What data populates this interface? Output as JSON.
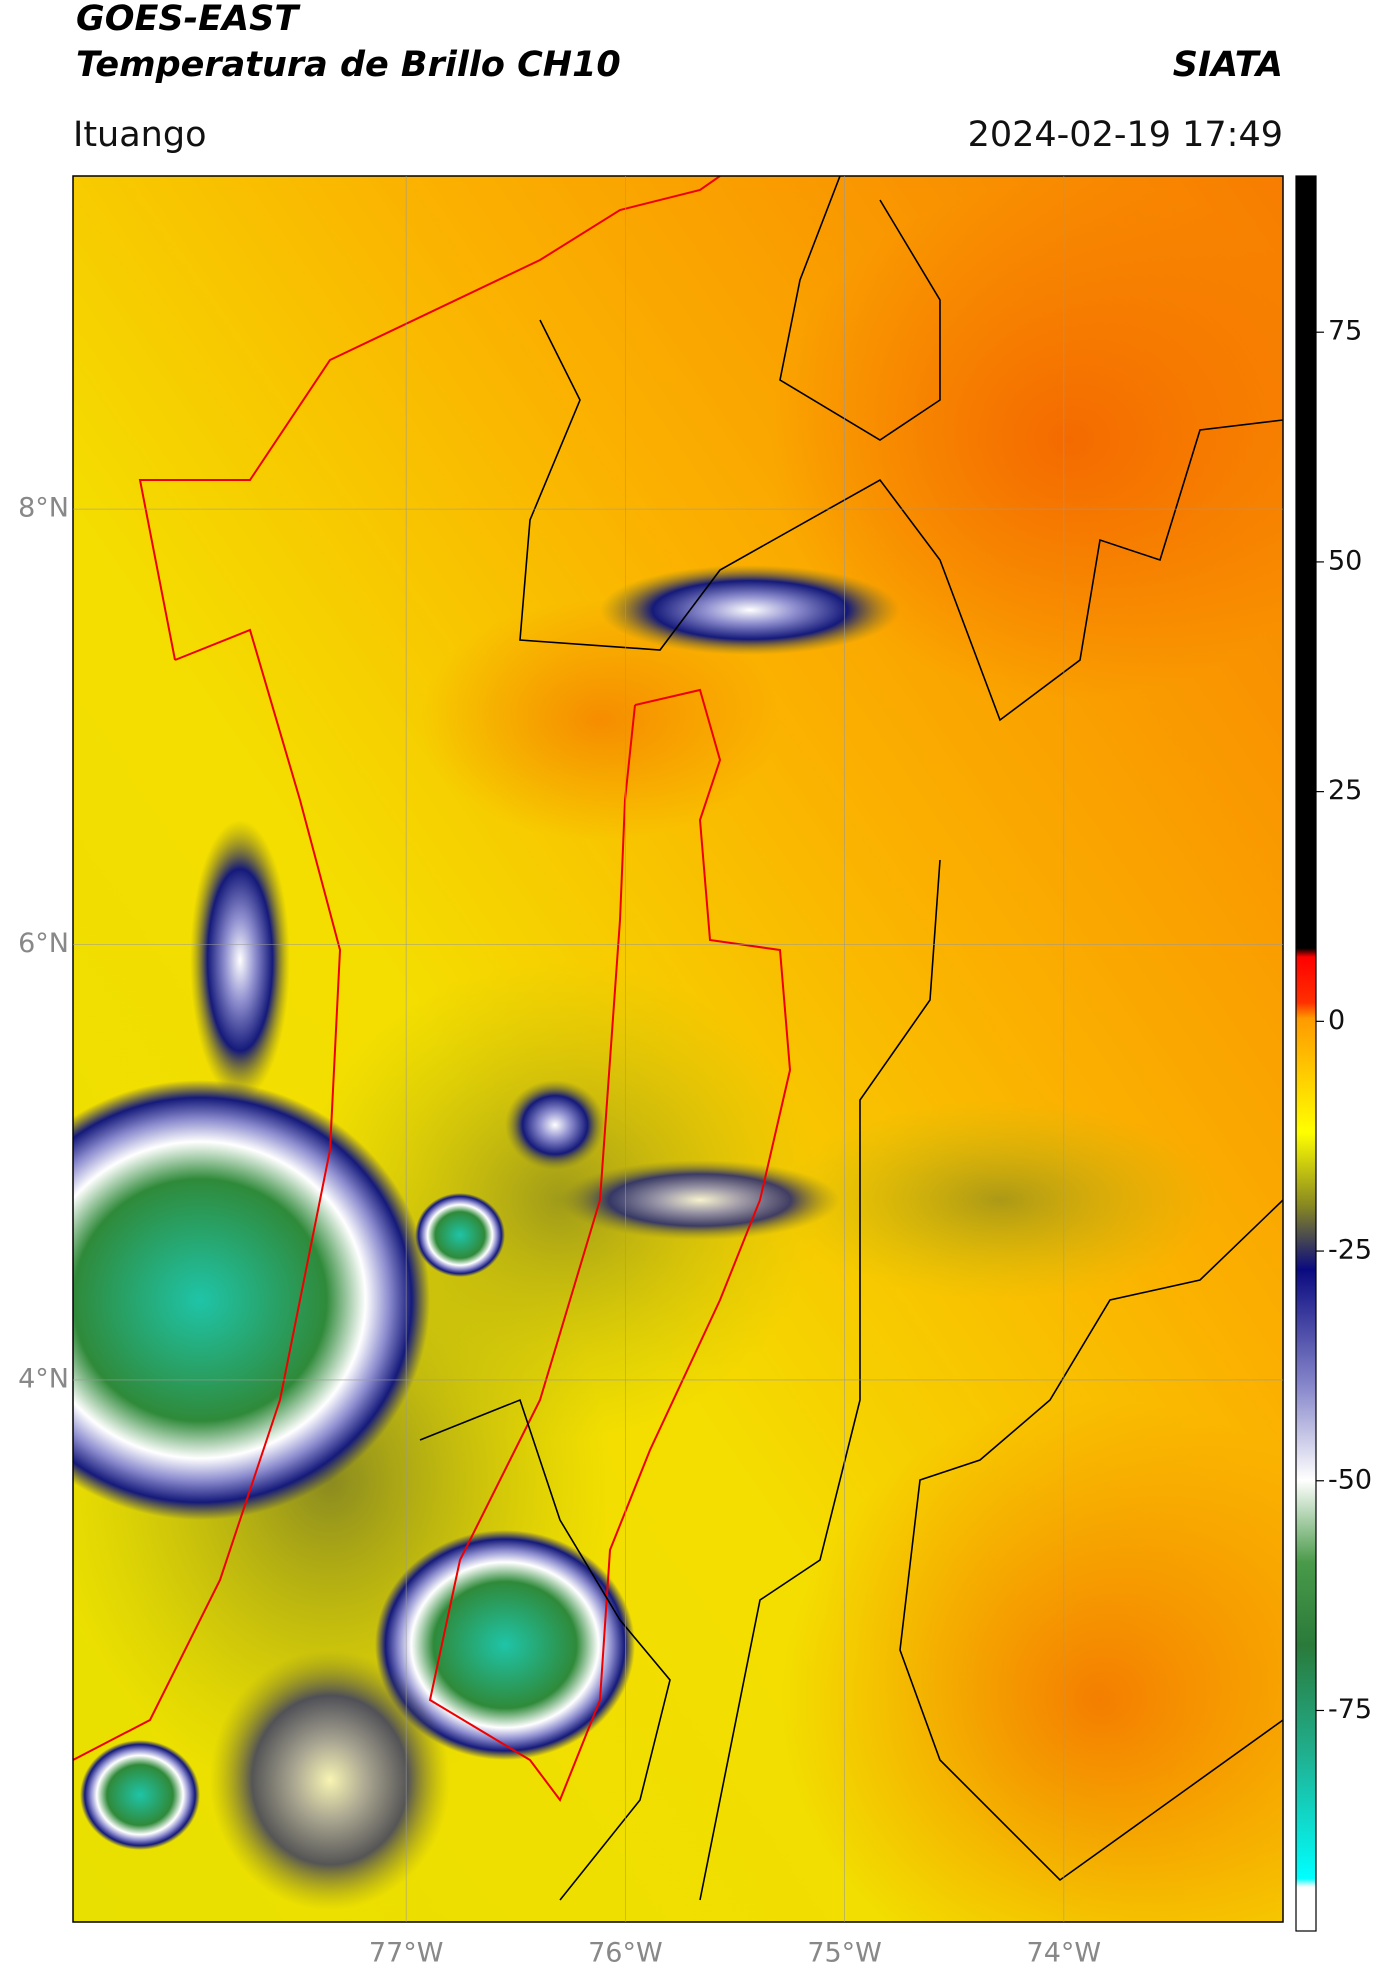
{
  "header": {
    "title": "GOES-EAST",
    "subtitle": "Temperatura de Brillo CH10",
    "source": "SIATA",
    "region": "Ituango",
    "timestamp": "2024-02-19 17:49"
  },
  "map": {
    "lon_range": [
      -78.52,
      -73.0
    ],
    "lat_range": [
      1.51,
      9.53
    ],
    "lon_ticks": [
      {
        "value": -77,
        "label": "77°W"
      },
      {
        "value": -76,
        "label": "76°W"
      },
      {
        "value": -75,
        "label": "75°W"
      },
      {
        "value": -74,
        "label": "74°W"
      }
    ],
    "lat_ticks": [
      {
        "value": 8,
        "label": "8°N"
      },
      {
        "value": 6,
        "label": "6°N"
      },
      {
        "value": 4,
        "label": "4°N"
      }
    ]
  },
  "colorbar": {
    "range": [
      -99,
      92
    ],
    "ticks": [
      75,
      50,
      25,
      0,
      -25,
      -50,
      -75
    ]
  }
}
